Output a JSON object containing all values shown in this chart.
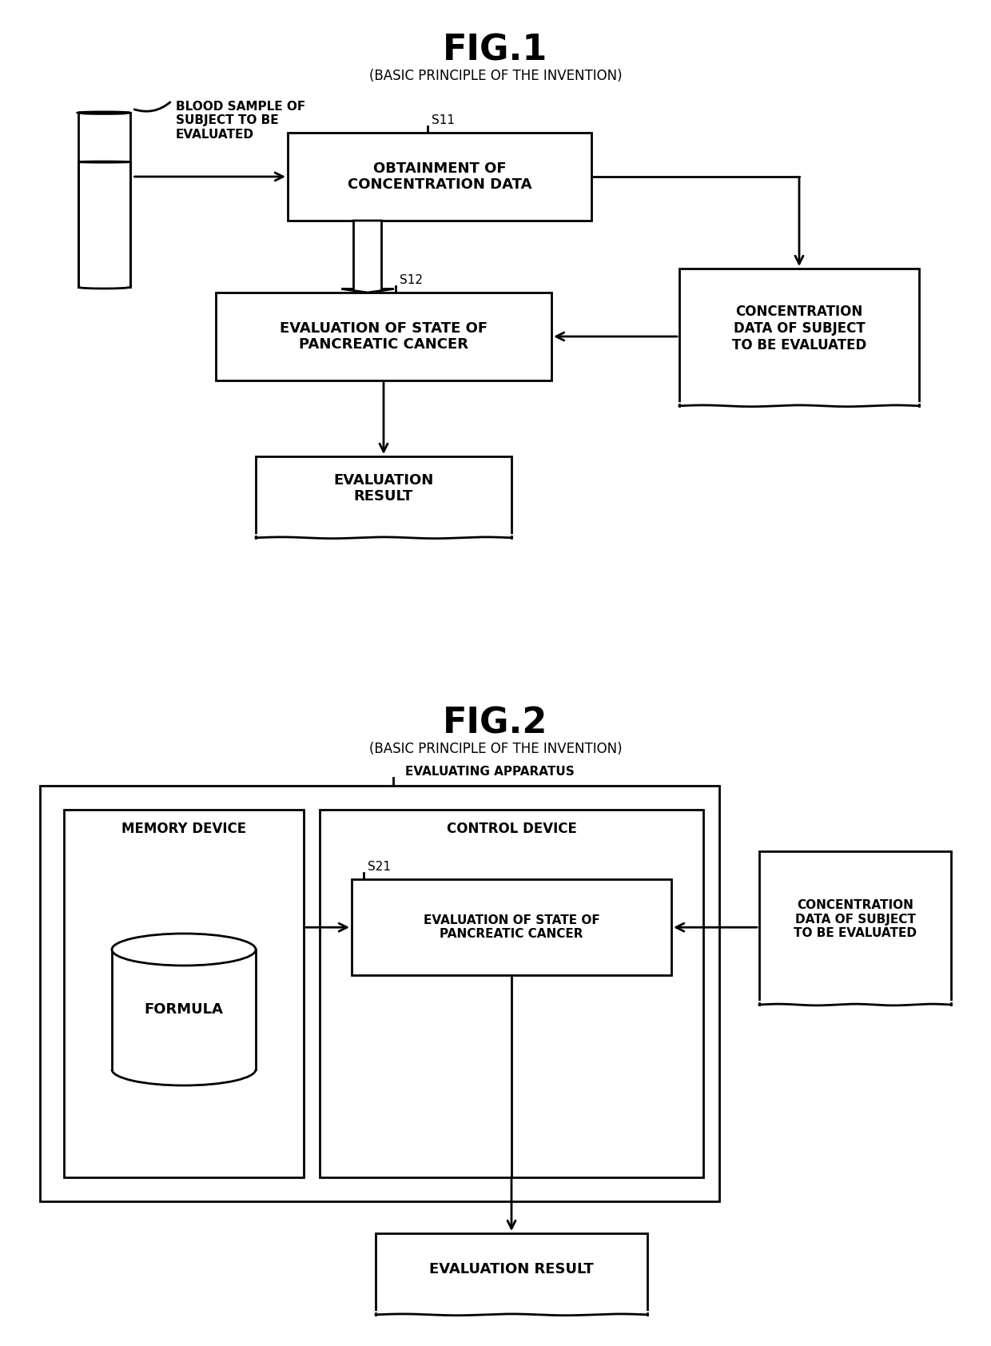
{
  "fig1_title": "FIG.1",
  "fig1_subtitle": "(BASIC PRINCIPLE OF THE INVENTION)",
  "fig2_title": "FIG.2",
  "fig2_subtitle": "(BASIC PRINCIPLE OF THE INVENTION)",
  "bg_color": "#ffffff",
  "line_color": "#000000",
  "fig1": {
    "blood_label": "BLOOD SAMPLE OF\nSUBJECT TO BE\nEVALUATED",
    "s11_label": "S11",
    "s11_box": "OBTAINMENT OF\nCONCENTRATION DATA",
    "s12_label": "S12",
    "s12_box": "EVALUATION OF STATE OF\nPANCREATIC CANCER",
    "right_box": "CONCENTRATION\nDATA OF SUBJECT\nTO BE EVALUATED",
    "result_box": "EVALUATION\nRESULT"
  },
  "fig2": {
    "apparatus_label": "EVALUATING APPARATUS",
    "memory_label": "MEMORY DEVICE",
    "formula_label": "FORMULA",
    "control_label": "CONTROL DEVICE",
    "s21_label": "S21",
    "eval_box": "EVALUATION OF STATE OF\nPANCREATIC CANCER",
    "right_box": "CONCENTRATION\nDATA OF SUBJECT\nTO BE EVALUATED",
    "result_box": "EVALUATION RESULT"
  }
}
